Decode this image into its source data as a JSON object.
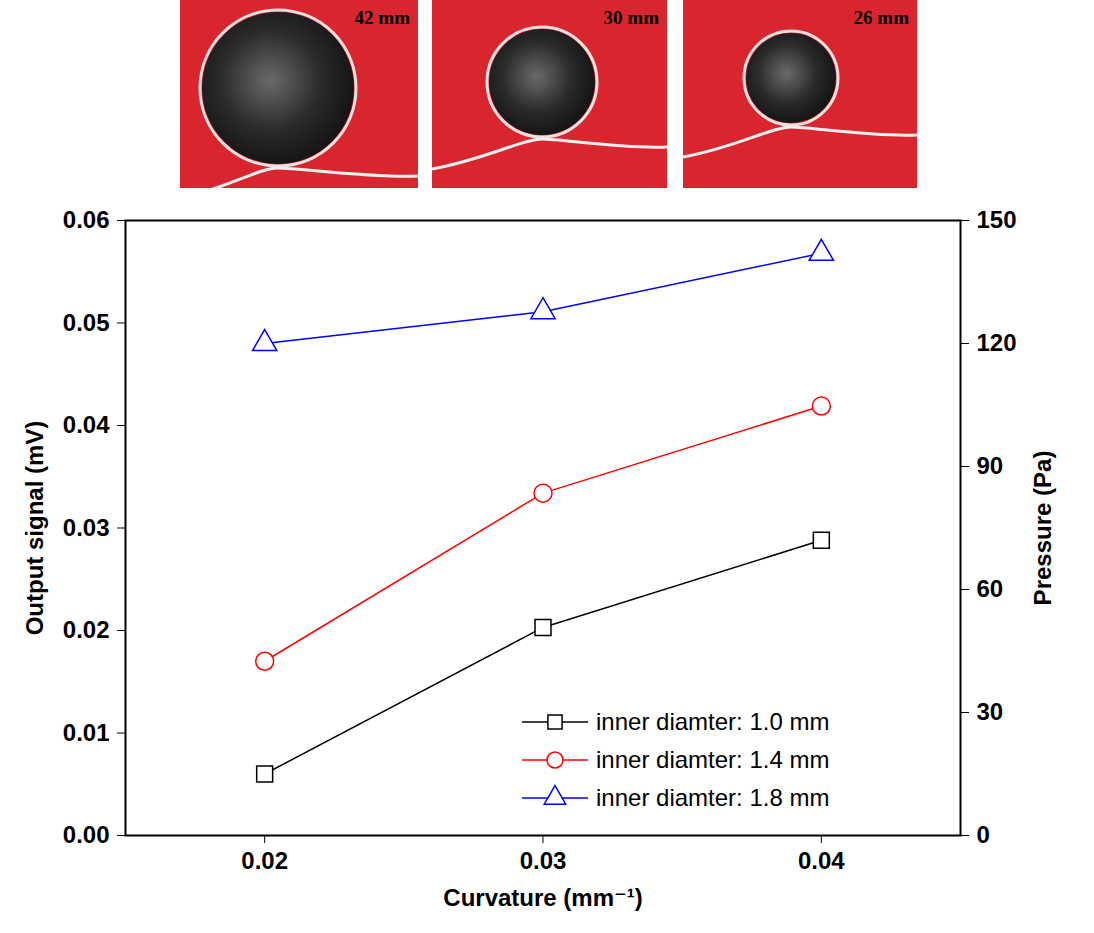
{
  "photos": [
    {
      "label": "42 mm"
    },
    {
      "label": "30 mm"
    },
    {
      "label": "26 mm"
    }
  ],
  "chart_data": {
    "type": "line",
    "x_label": "Curvature (mm⁻¹)",
    "y_label": "Output signal (mV)",
    "y2_label": "Pressure (Pa)",
    "x": [
      0.02,
      0.03,
      0.04
    ],
    "xlim": [
      0.015,
      0.045
    ],
    "xticks": [
      0.02,
      0.03,
      0.04
    ],
    "ylim": [
      0,
      0.06
    ],
    "yticks": [
      {
        "value": 0,
        "label": "0.00"
      },
      {
        "value": 0.01,
        "label": "0.01"
      },
      {
        "value": 0.02,
        "label": "0.02"
      },
      {
        "value": 0.03,
        "label": "0.03"
      },
      {
        "value": 0.04,
        "label": "0.04"
      },
      {
        "value": 0.05,
        "label": "0.05"
      },
      {
        "value": 0.06,
        "label": "0.06"
      }
    ],
    "y2lim": [
      0,
      150
    ],
    "y2ticks": [
      0,
      30,
      60,
      90,
      120,
      150
    ],
    "grid": false,
    "legend": "lower right",
    "series": [
      {
        "name": "inner diamter: 1.0 mm",
        "color": "#000000",
        "marker": "square",
        "values": [
          0.006,
          0.0203,
          0.0288
        ]
      },
      {
        "name": "inner diamter: 1.4 mm",
        "color": "#ff0000",
        "marker": "circle",
        "values": [
          0.017,
          0.0334,
          0.0419
        ]
      },
      {
        "name": "inner diamter: 1.8 mm",
        "color": "#0000ff",
        "marker": "triangle",
        "values": [
          0.048,
          0.0511,
          0.0568
        ]
      }
    ]
  }
}
